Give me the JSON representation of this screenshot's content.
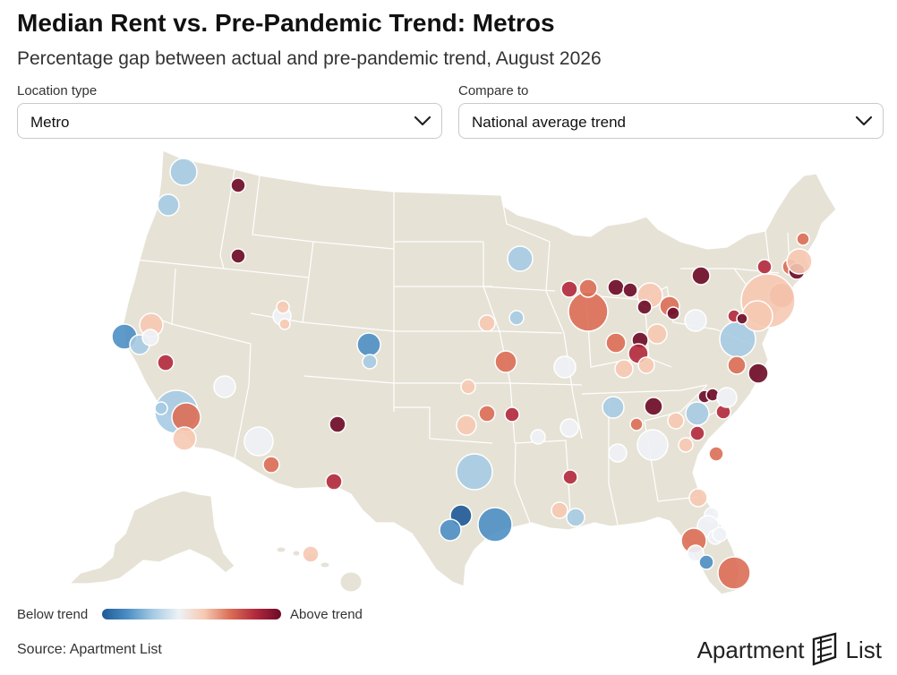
{
  "header": {
    "title": "Median Rent vs. Pre-Pandemic Trend: Metros",
    "subtitle": "Percentage gap between actual and pre-pandemic trend, August 2026"
  },
  "controls": {
    "location_type": {
      "label": "Location type",
      "value": "Metro"
    },
    "compare_to": {
      "label": "Compare to",
      "value": "National average trend"
    }
  },
  "legend": {
    "left": "Below trend",
    "right": "Above trend",
    "colors": [
      "#1d5a96",
      "#4d8fc4",
      "#a6cbe3",
      "#eef2f6",
      "#f6c9b2",
      "#db6e57",
      "#b2293d",
      "#6b0a26"
    ]
  },
  "footer": {
    "source": "Source: Apartment List"
  },
  "brand": {
    "word1": "Apartment",
    "word2": "List",
    "icon": "apartment-list-logo-icon"
  },
  "colors": {
    "land": "#e6e2d6",
    "border": "#ffffff",
    "marker_stroke": "#ffffff"
  }
}
